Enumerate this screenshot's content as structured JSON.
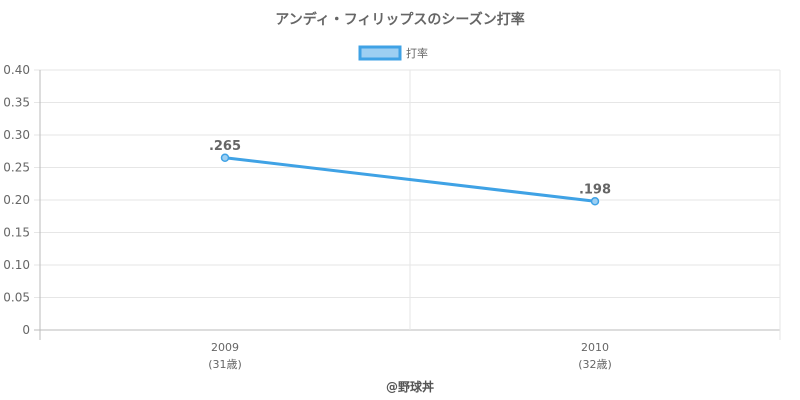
{
  "chart_data": {
    "type": "line",
    "title": "アンディ・フィリップスのシーズン打率",
    "categories": [
      "2009",
      "2010"
    ],
    "category_sublabels": [
      "(31歳)",
      "(32歳)"
    ],
    "series": [
      {
        "name": "打率",
        "values": [
          0.265,
          0.198
        ],
        "data_labels": [
          ".265",
          ".198"
        ],
        "color": "#3fa2e5",
        "fill": "#9dcff2"
      }
    ],
    "xlabel": "",
    "ylabel": "",
    "ylim": [
      0,
      0.4
    ],
    "yticks": [
      "0",
      "0.05",
      "0.10",
      "0.15",
      "0.20",
      "0.25",
      "0.30",
      "0.35",
      "0.40"
    ],
    "grid": true,
    "legend": "top-center"
  },
  "footer": {
    "credit": "@野球丼"
  }
}
